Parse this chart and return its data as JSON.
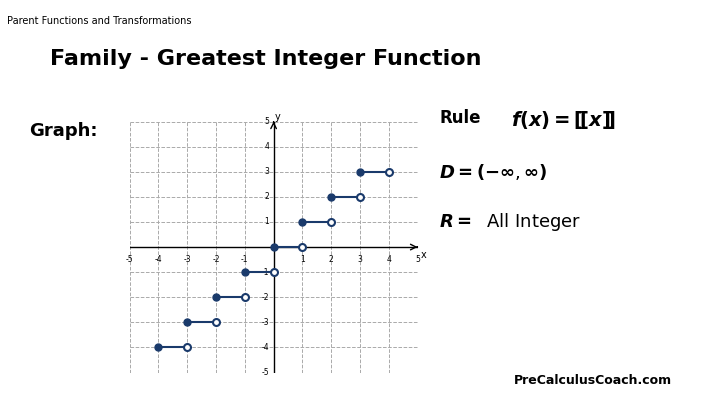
{
  "title_top": "Parent Functions and Transformations",
  "title_main": "Family - Greatest Integer Function",
  "graph_label": "Graph:",
  "rule_label": "Rule",
  "rule_formula": "$f(x) = \\llbracket x \\rrbracket$",
  "domain_text": "$D = (-\\infty, \\infty)$",
  "range_text": "$R = $ All Integer",
  "steps": [
    {
      "x_start": 0,
      "x_end": 1,
      "y": 0
    },
    {
      "x_start": 1,
      "x_end": 2,
      "y": 1
    },
    {
      "x_start": 2,
      "x_end": 3,
      "y": 2
    },
    {
      "x_start": 3,
      "x_end": 4,
      "y": 3
    },
    {
      "x_start": -1,
      "x_end": 0,
      "y": -1
    },
    {
      "x_start": -2,
      "x_end": -1,
      "y": -2
    },
    {
      "x_start": -3,
      "x_end": -2,
      "y": -3
    },
    {
      "x_start": -4,
      "x_end": -3,
      "y": -4
    }
  ],
  "xlim": [
    -5,
    5
  ],
  "ylim": [
    -5,
    5
  ],
  "dot_color": "#1a3a6b",
  "line_color": "#1a3a6b",
  "axis_color": "#000000",
  "grid_color": "#aaaaaa",
  "background_color": "#ffffff",
  "brand_text": "PreCalculusCoach.com",
  "brand_bg": "#00bcd4",
  "brand_icon_color": "#ffffff"
}
